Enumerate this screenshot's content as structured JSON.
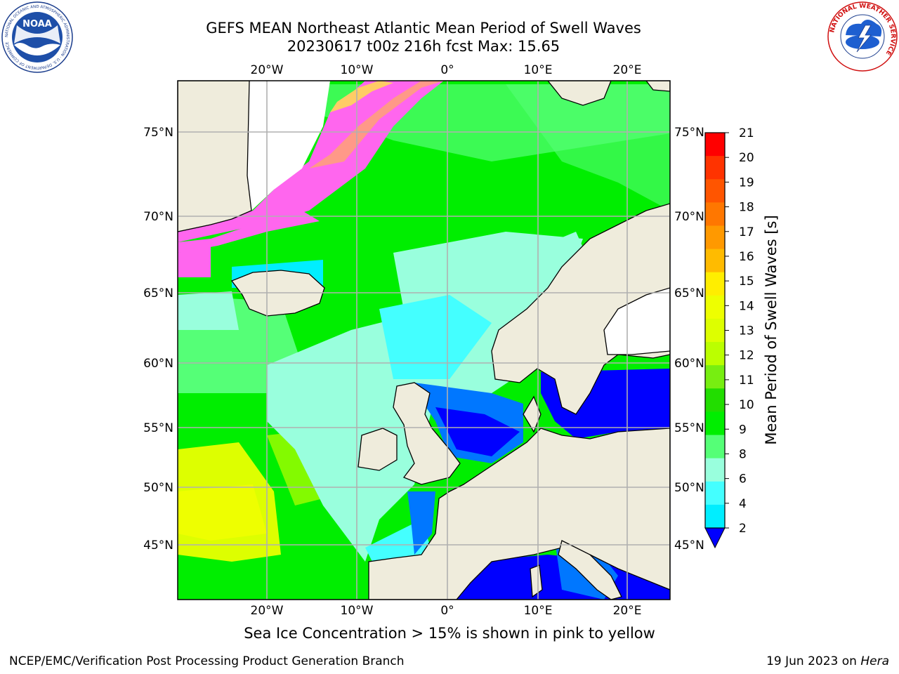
{
  "title": {
    "line1": "GEFS MEAN Northeast Atlantic Mean Period of Swell Waves",
    "line2": "20230617 t00z 216h fcst   Max: 15.65"
  },
  "logos": {
    "noaa_text": "NOAA",
    "noaa_ring": "NATIONAL OCEANIC AND ATMOSPHERIC ADMINISTRATION · U.S. DEPARTMENT OF COMMERCE",
    "nws_ring": "NATIONAL WEATHER SERVICE"
  },
  "map": {
    "lon_ticks": [
      "20°W",
      "10°W",
      "0°",
      "10°E",
      "20°E"
    ],
    "lat_ticks": [
      "75°N",
      "70°N",
      "65°N",
      "60°N",
      "55°N",
      "50°N",
      "45°N"
    ],
    "colors": {
      "land": "#efecdc",
      "ice_white": "#ffffff",
      "grid": "#b0b0b0"
    }
  },
  "colorbar": {
    "label": "Mean Period of Swell Waves [s]",
    "ticks": [
      "21",
      "20",
      "19",
      "18",
      "17",
      "16",
      "15",
      "14",
      "13",
      "12",
      "11",
      "10",
      "9",
      "8",
      "6",
      "4",
      "2"
    ],
    "colors": [
      "#ff0000",
      "#ff3300",
      "#ff5500",
      "#ff7700",
      "#ff9900",
      "#ffbb00",
      "#ffee00",
      "#eeff00",
      "#ddff00",
      "#bbff00",
      "#77ee11",
      "#22dd00",
      "#00ee00",
      "#55ff77",
      "#99ffdd",
      "#44ffff",
      "#00eeff",
      "#0077ff"
    ],
    "under_color": "#0000ff"
  },
  "note": "Sea Ice Concentration > 15% is shown in pink to yellow",
  "footer": {
    "left": "NCEP/EMC/Verification Post Processing Product Generation Branch",
    "right_date": "19 Jun 2023 on ",
    "right_host": "Hera"
  }
}
